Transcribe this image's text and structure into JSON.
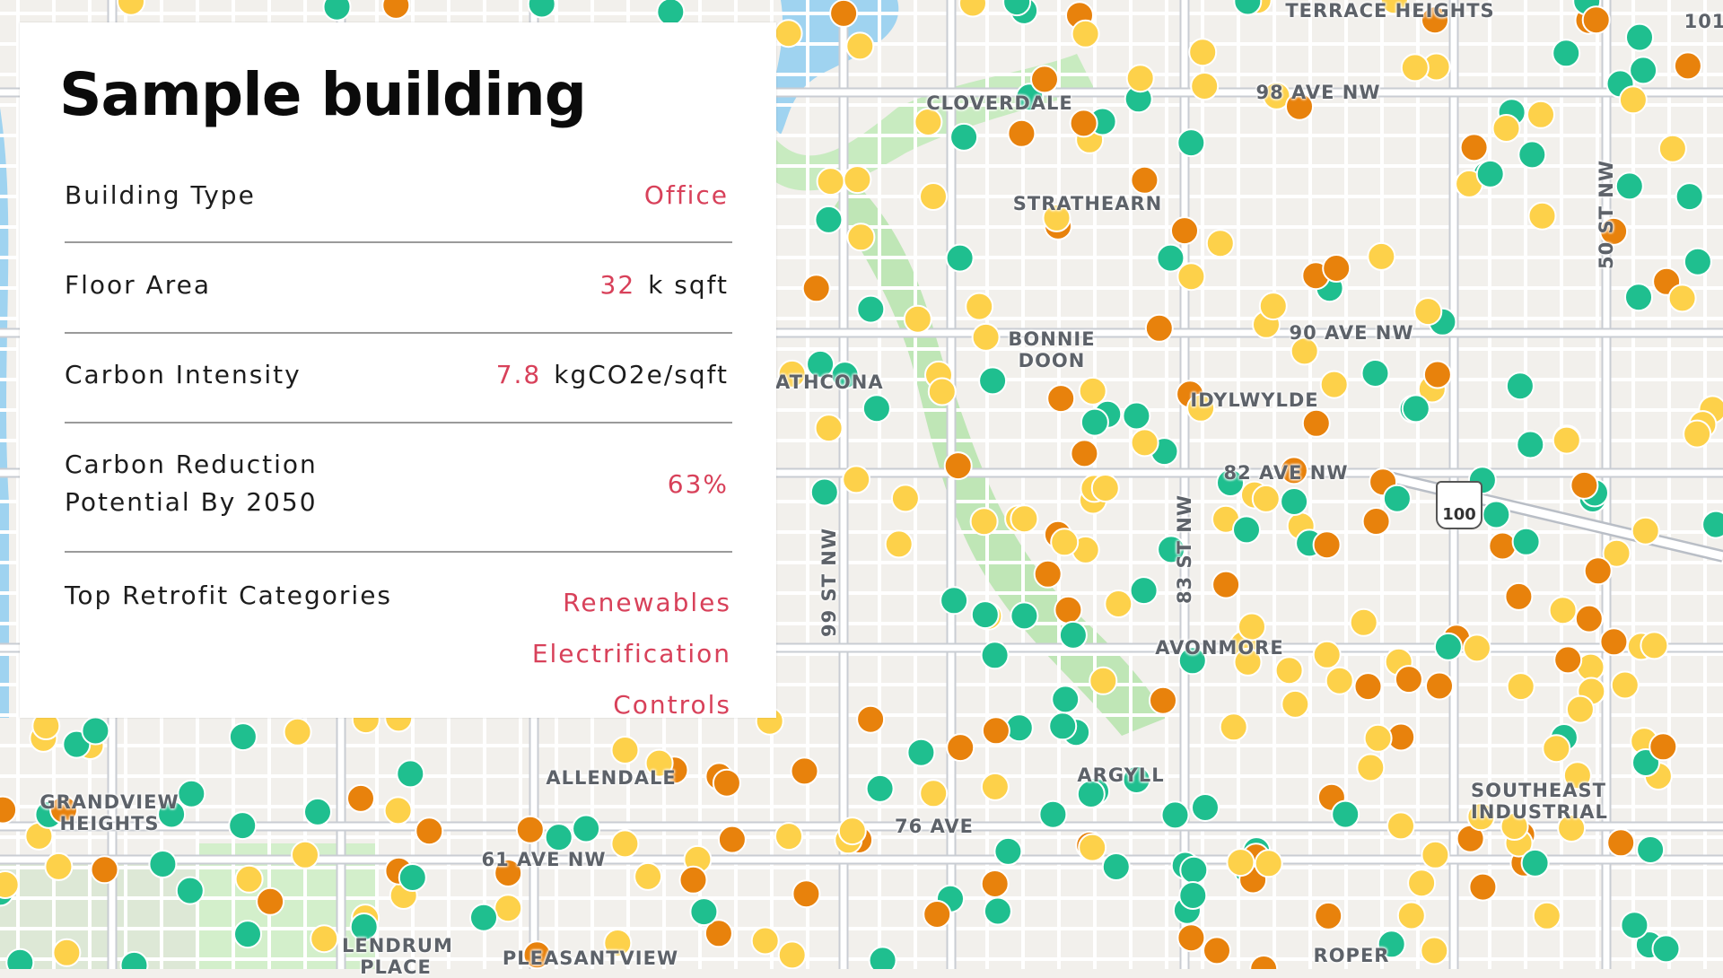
{
  "panel": {
    "title": "Sample building",
    "rows": [
      {
        "label": "Building Type",
        "value": "Office",
        "unit": ""
      },
      {
        "label": "Floor Area",
        "value": "32",
        "unit": "k sqft"
      },
      {
        "label": "Carbon Intensity",
        "value": "7.8",
        "unit": "kgCO2e/sqft"
      },
      {
        "label": "Carbon Reduction Potential By 2050",
        "value": "63%",
        "unit": ""
      }
    ],
    "retrofit": {
      "label": "Top Retrofit Categories",
      "categories": [
        "Renewables",
        "Electrification",
        "Controls"
      ]
    },
    "accent_color": "#d8415a"
  },
  "map": {
    "labels": {
      "terrace_heights": "TERRACE HEIGHTS",
      "cloverdale": "CLOVERDALE",
      "ave98": "98 AVE NW",
      "strathearn": "STRATHEARN",
      "bonnie_doon": "BONNIE DOON",
      "ave90": "90 AVE NW",
      "strathcona": "STRATHCONA",
      "idylwylde": "IDYLWYLDE",
      "ave82": "82 AVE NW",
      "st83": "83 ST NW",
      "st99": "99 ST NW",
      "st50": "50 ST NW",
      "avonmore": "AVONMORE",
      "argyll": "ARGYLL",
      "allendale": "ALLENDALE",
      "grandview": "GRANDVIEW HEIGHTS",
      "ave61": "61 AVE NW",
      "lendrum": "LENDRUM PLACE",
      "pleasantview": "PLEASANTVIEW",
      "ave76": "76 AVE",
      "southeast_industrial": "SOUTHEAST INDUSTRIAL",
      "roper": "ROPER",
      "hwy101": "101",
      "hwy100": "100"
    },
    "marker_colors": {
      "low": "#1fbf8f",
      "medium": "#fdd14a",
      "high": "#e8820c"
    }
  }
}
